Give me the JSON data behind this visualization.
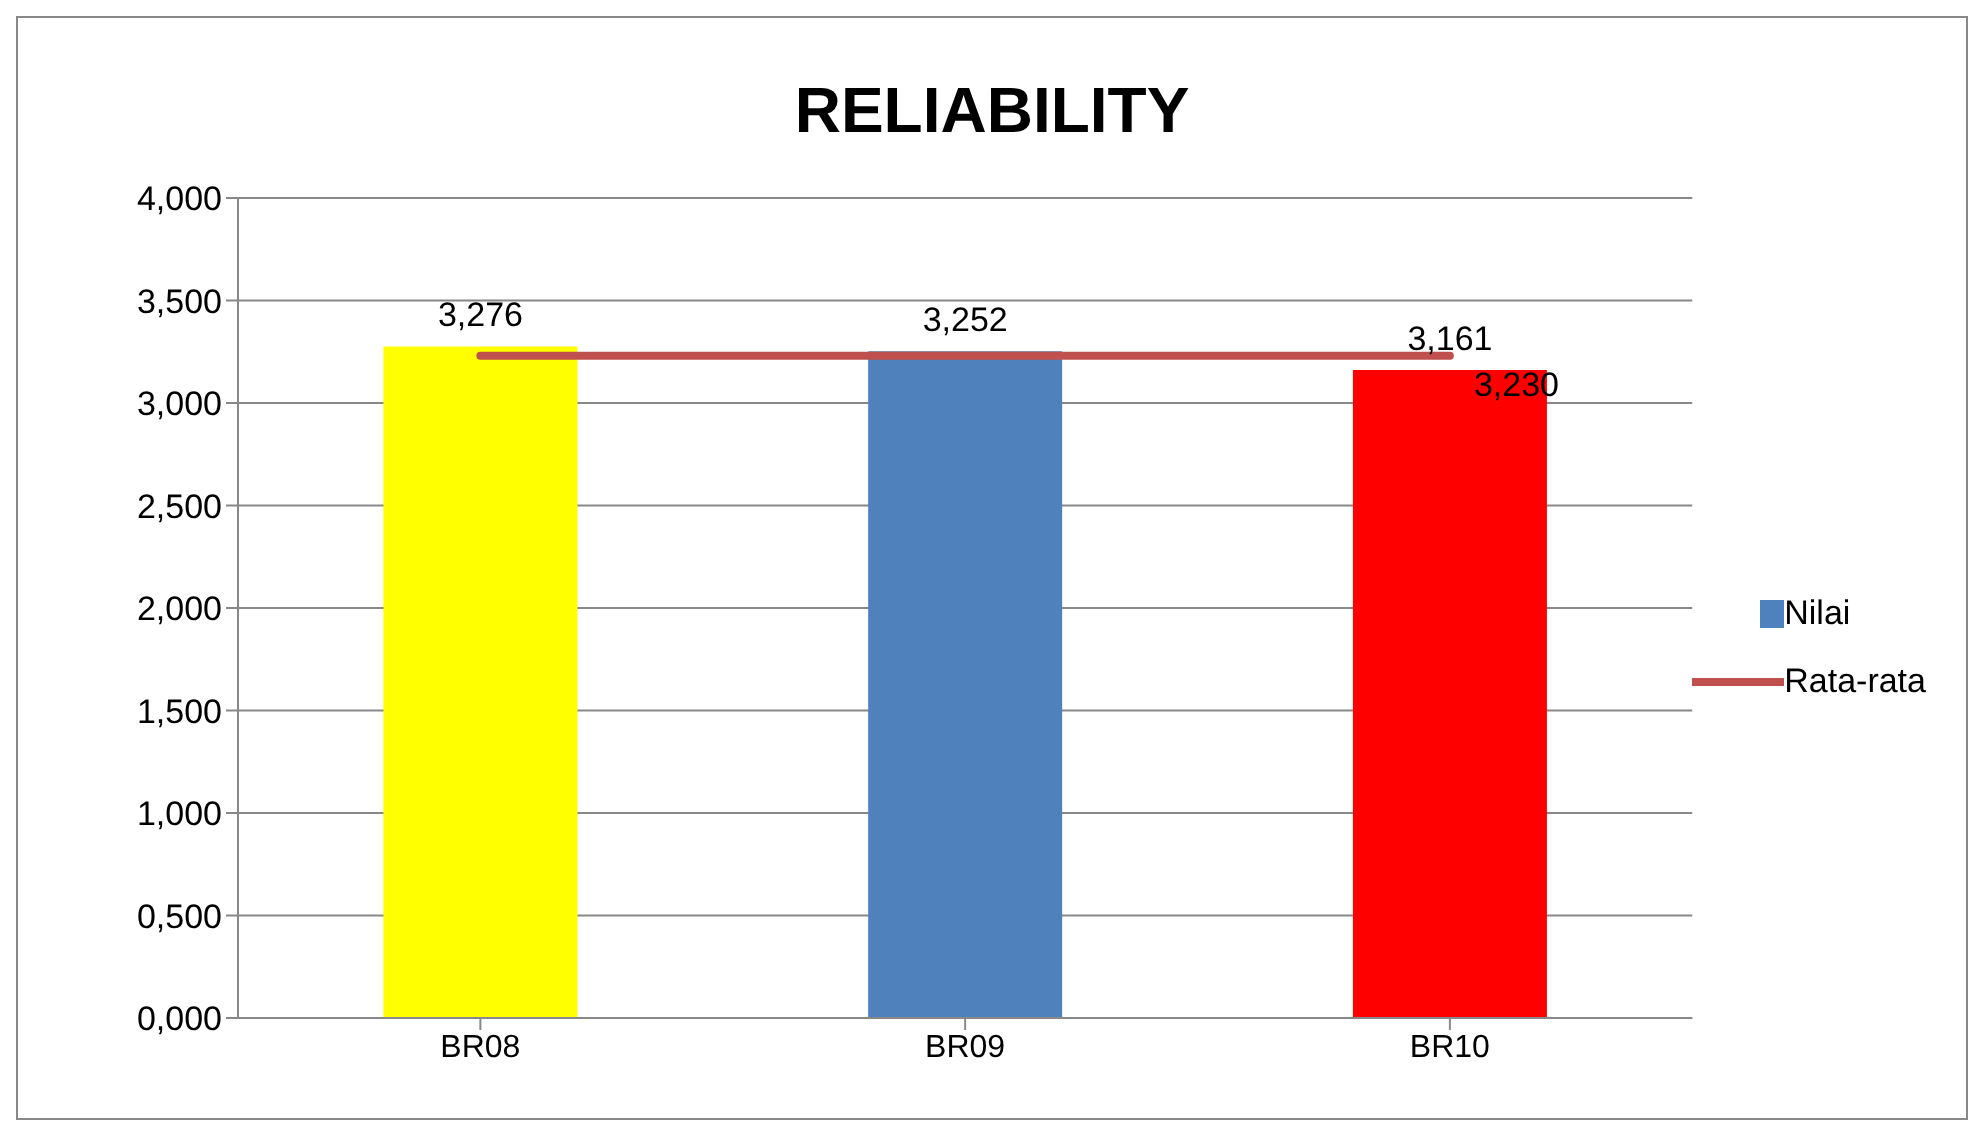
{
  "chart_data": {
    "type": "bar",
    "title": "RELIABILITY",
    "categories": [
      "BR08",
      "BR09",
      "BR10"
    ],
    "series": [
      {
        "name": "Nilai",
        "color": "#4f81bd",
        "colors": [
          "#ffff00",
          "#4f81bd",
          "#ff0000"
        ],
        "values": [
          3.276,
          3.252,
          3.161
        ],
        "value_labels": [
          "3,276",
          "3,252",
          "3,161"
        ]
      },
      {
        "name": "Rata-rata",
        "type": "line",
        "color": "#c0504d",
        "values": [
          3.23,
          3.23,
          3.23
        ],
        "value_labels": [
          null,
          null,
          "3,230"
        ]
      }
    ],
    "ylim": [
      0,
      4
    ],
    "yticks": [
      {
        "value": 0,
        "label": "0,000"
      },
      {
        "value": 0.5,
        "label": "0,500"
      },
      {
        "value": 1,
        "label": "1,000"
      },
      {
        "value": 1.5,
        "label": "1,500"
      },
      {
        "value": 2,
        "label": "2,000"
      },
      {
        "value": 2.5,
        "label": "2,500"
      },
      {
        "value": 3,
        "label": "3,000"
      },
      {
        "value": 3.5,
        "label": "3,500"
      },
      {
        "value": 4,
        "label": "4,000"
      }
    ],
    "grid": "y",
    "legend": "right",
    "marker": "none"
  }
}
